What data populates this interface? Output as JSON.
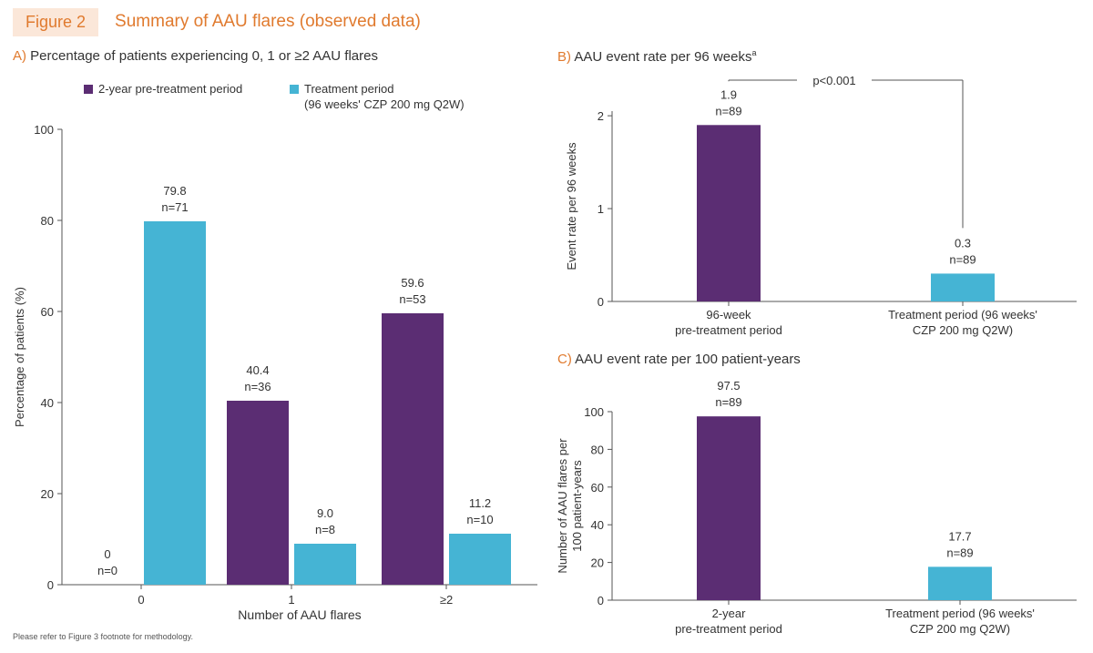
{
  "figure": {
    "label": "Figure 2",
    "title": "Summary of AAU flares (observed data)",
    "footnote": "Please refer to Figure 3 footnote for methodology.",
    "colors": {
      "pretreatment": "#5b2d73",
      "treatment": "#45b4d4",
      "accent": "#e07a2e"
    }
  },
  "legend": {
    "pretreatment": "2-year pre-treatment period",
    "treatment_line1": "Treatment period",
    "treatment_line2": "(96 weeks' CZP 200 mg Q2W)"
  },
  "panels": {
    "a": {
      "letter": "A)",
      "title": "Percentage of patients experiencing 0, 1 or ≥2 AAU flares"
    },
    "b": {
      "letter": "B)",
      "title": "AAU event rate per 96 weeks",
      "sup": "a"
    },
    "c": {
      "letter": "C)",
      "title": "AAU event rate per 100 patient-years"
    }
  },
  "chart_data": [
    {
      "type": "bar",
      "panel": "A",
      "categories": [
        "0",
        "1",
        "≥2"
      ],
      "series": [
        {
          "name": "2-year pre-treatment period",
          "values": [
            0,
            40.4,
            59.6
          ],
          "value_labels": [
            "0",
            "40.4",
            "59.6"
          ],
          "n_labels": [
            "n=0",
            "n=36",
            "n=53"
          ],
          "color": "#5b2d73"
        },
        {
          "name": "Treatment period (96 weeks' CZP 200 mg Q2W)",
          "values": [
            79.8,
            9.0,
            11.2
          ],
          "value_labels": [
            "79.8",
            "9.0",
            "11.2"
          ],
          "n_labels": [
            "n=71",
            "n=8",
            "n=10"
          ],
          "color": "#45b4d4"
        }
      ],
      "xlabel": "Number of AAU flares",
      "ylabel": "Percentage of patients (%)",
      "ylim": [
        0,
        100
      ],
      "yticks": [
        0,
        20,
        40,
        60,
        80,
        100
      ],
      "legend_position": "top"
    },
    {
      "type": "bar",
      "panel": "B",
      "categories": [
        [
          "96-week",
          "pre-treatment period"
        ],
        [
          "Treatment period (96 weeks'",
          "CZP 200 mg Q2W)"
        ]
      ],
      "values": [
        1.9,
        0.3
      ],
      "value_labels": [
        "1.9",
        "0.3"
      ],
      "n_labels": [
        "n=89",
        "n=89"
      ],
      "colors": [
        "#5b2d73",
        "#45b4d4"
      ],
      "ylabel": "Event rate per 96 weeks",
      "ylim": [
        0,
        2.05
      ],
      "yticks": [
        0,
        1,
        2
      ],
      "annotation": "p<0.001"
    },
    {
      "type": "bar",
      "panel": "C",
      "categories": [
        [
          "2-year",
          "pre-treatment period"
        ],
        [
          "Treatment period (96 weeks'",
          "CZP 200 mg Q2W)"
        ]
      ],
      "values": [
        97.5,
        17.7
      ],
      "value_labels": [
        "97.5",
        "17.7"
      ],
      "n_labels": [
        "n=89",
        "n=89"
      ],
      "colors": [
        "#5b2d73",
        "#45b4d4"
      ],
      "ylabel": [
        "Number of AAU flares per",
        "100 patient-years"
      ],
      "ylim": [
        0,
        100
      ],
      "yticks": [
        0,
        20,
        40,
        60,
        80,
        100
      ]
    }
  ]
}
